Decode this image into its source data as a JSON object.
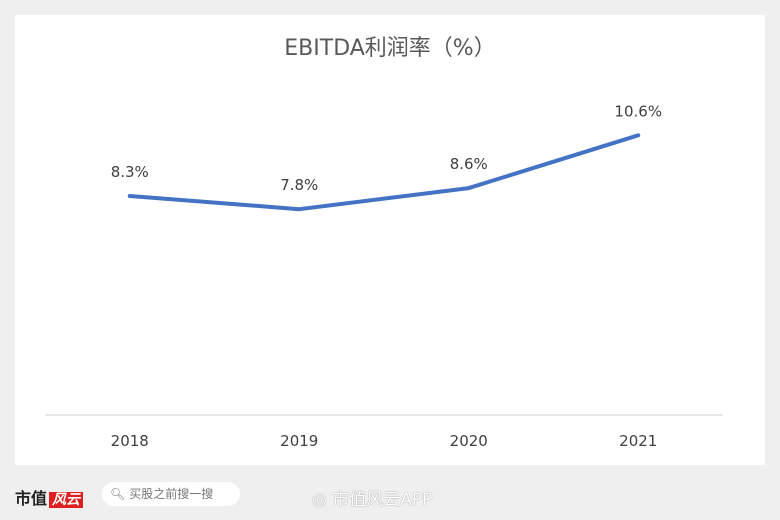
{
  "chart_data": {
    "type": "line",
    "title": "EBITDA利润率（%）",
    "categories": [
      "2018",
      "2019",
      "2020",
      "2021"
    ],
    "series": [
      {
        "values": [
          8.3,
          7.8,
          8.6,
          10.6
        ]
      }
    ],
    "data_labels": [
      "8.3%",
      "7.8%",
      "8.6%",
      "10.6%"
    ],
    "ylim": [
      0,
      13
    ],
    "grid": false,
    "line_color": "#4472c4"
  },
  "footer": {
    "logo_text": "市值",
    "logo_badge": "风云",
    "search_placeholder": "买股之前搜一搜",
    "watermark": "市值风云APP"
  },
  "icons": {
    "search": "search-icon",
    "weibo": "weibo-icon"
  }
}
